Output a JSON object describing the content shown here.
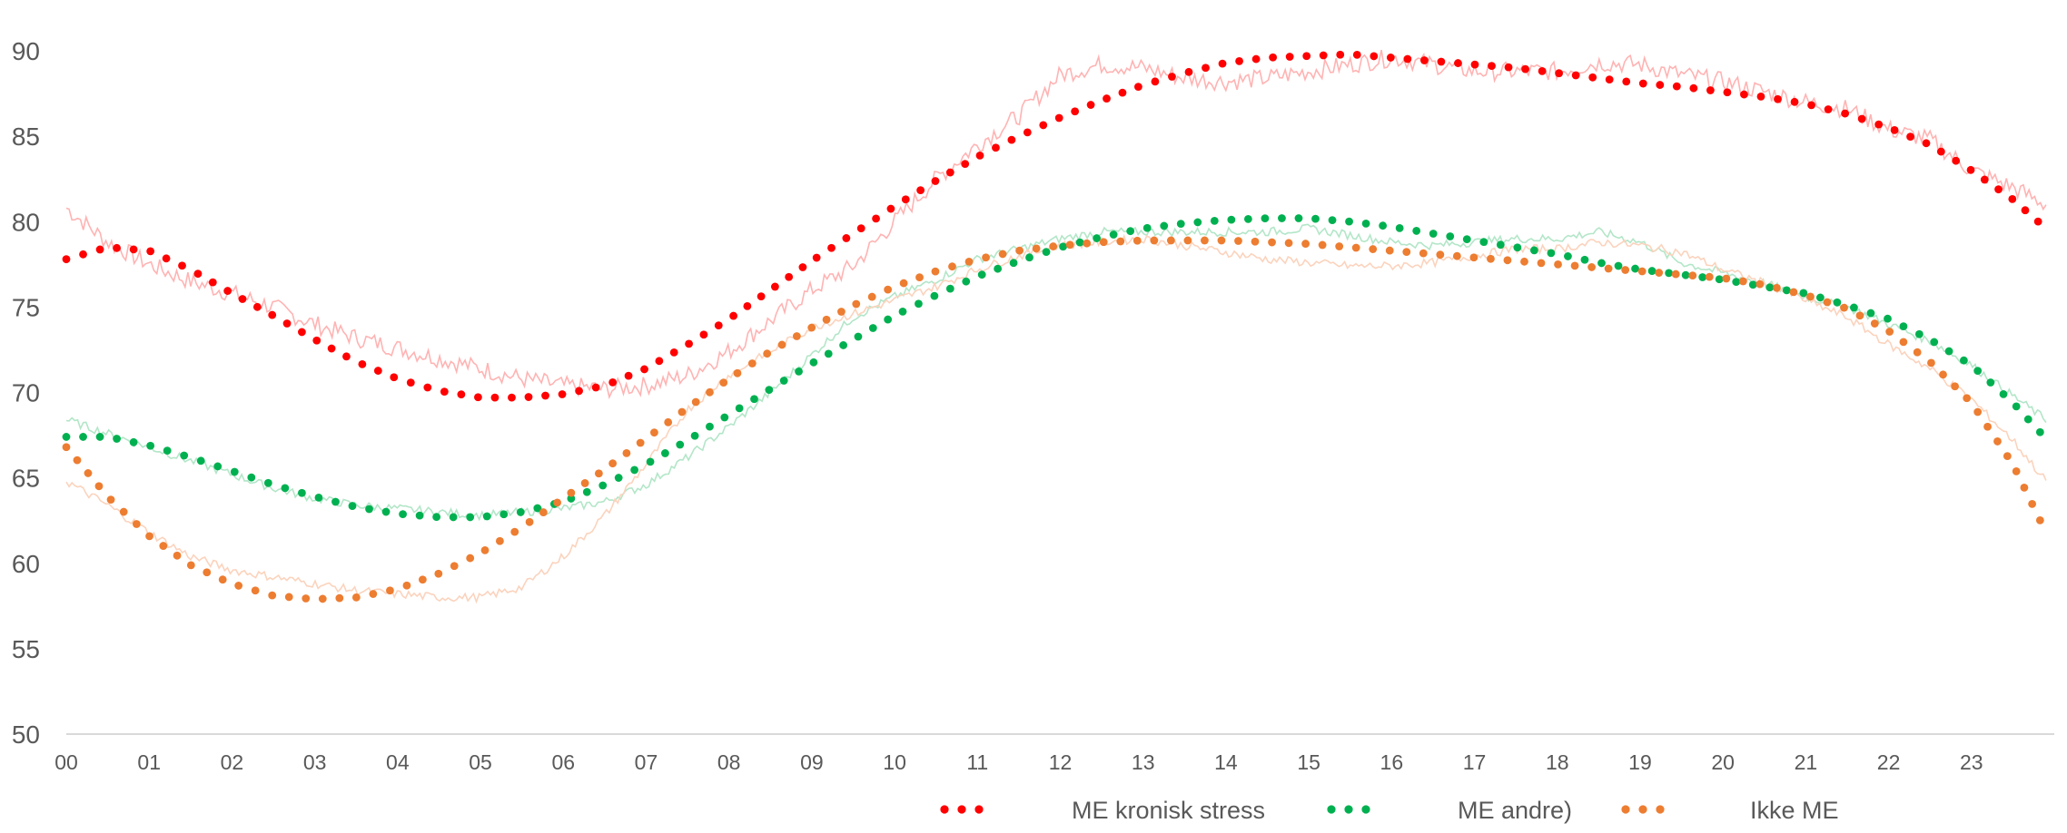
{
  "chart_data": {
    "type": "line",
    "title": "",
    "xlabel": "",
    "ylabel": "",
    "ylim": [
      50,
      90
    ],
    "yticks": [
      "50",
      "55",
      "60",
      "65",
      "70",
      "75",
      "80",
      "85",
      "90"
    ],
    "xlim": [
      0,
      24
    ],
    "xticks": [
      "00",
      "01",
      "02",
      "03",
      "04",
      "05",
      "06",
      "07",
      "08",
      "09",
      "10",
      "11",
      "12",
      "13",
      "14",
      "15",
      "16",
      "17",
      "18",
      "19",
      "20",
      "21",
      "22",
      "23"
    ],
    "grid": false,
    "legend": "bottom",
    "series": [
      {
        "name": "ME kronisk stress",
        "color": "#ff0000",
        "raw_color": "#ffb3b3",
        "trend_x": [
          0,
          0.5,
          1,
          1.5,
          2,
          2.5,
          3,
          3.5,
          4,
          4.5,
          5,
          5.5,
          6,
          6.5,
          7,
          7.5,
          8,
          8.5,
          9,
          9.5,
          10,
          10.5,
          11,
          11.5,
          12,
          12.5,
          13,
          13.5,
          14,
          14.5,
          15,
          15.5,
          16,
          16.5,
          17,
          17.5,
          18,
          18.5,
          19,
          19.5,
          20,
          20.5,
          21,
          21.5,
          22,
          22.5,
          23,
          23.5,
          23.9
        ],
        "trend_y": [
          77.8,
          78.5,
          78.3,
          77.2,
          75.8,
          74.5,
          73.1,
          71.8,
          70.8,
          70.1,
          69.7,
          69.7,
          69.9,
          70.4,
          71.4,
          72.8,
          74.3,
          76.0,
          77.7,
          79.3,
          80.9,
          82.4,
          83.8,
          85.0,
          86.1,
          87.1,
          88.0,
          88.7,
          89.3,
          89.6,
          89.7,
          89.8,
          89.6,
          89.4,
          89.2,
          89.0,
          88.7,
          88.4,
          88.1,
          87.9,
          87.6,
          87.3,
          86.9,
          86.3,
          85.5,
          84.5,
          83.0,
          81.3,
          79.6
        ],
        "raw_x": [
          0,
          0.5,
          1,
          1.5,
          2,
          2.5,
          3,
          3.5,
          4,
          4.5,
          5,
          5.5,
          6,
          6.5,
          7,
          7.5,
          8,
          8.5,
          9,
          9.5,
          10,
          10.5,
          11,
          11.5,
          12,
          12.5,
          13,
          13.5,
          14,
          14.5,
          15,
          15.5,
          16,
          16.5,
          17,
          17.5,
          18,
          18.5,
          19,
          19.5,
          20,
          20.5,
          21,
          21.5,
          22,
          22.5,
          23,
          23.5,
          23.9
        ],
        "raw_y": [
          80.8,
          78.8,
          77.5,
          76.5,
          75.8,
          75.0,
          74.0,
          73.2,
          72.6,
          72.0,
          71.4,
          70.8,
          70.4,
          70.2,
          70.4,
          71.0,
          72.4,
          74.2,
          76.0,
          77.4,
          80.0,
          82.5,
          84.5,
          86.2,
          88.6,
          89.2,
          89.0,
          88.4,
          88.2,
          88.4,
          88.8,
          89.2,
          89.6,
          89.2,
          88.8,
          88.8,
          88.8,
          89.3,
          89.2,
          88.6,
          88.2,
          87.6,
          87.0,
          86.6,
          85.4,
          84.8,
          83.0,
          82.0,
          81.0
        ]
      },
      {
        "name": "ME andre)",
        "color": "#00b050",
        "raw_color": "#b3e6c8",
        "trend_x": [
          0,
          0.5,
          1,
          1.5,
          2,
          2.5,
          3,
          3.5,
          4,
          4.5,
          5,
          5.5,
          6,
          6.5,
          7,
          7.5,
          8,
          8.5,
          9,
          9.5,
          10,
          10.5,
          11,
          11.5,
          12,
          12.5,
          13,
          13.5,
          14,
          14.5,
          15,
          15.5,
          16,
          16.5,
          17,
          17.5,
          18,
          18.5,
          19,
          19.5,
          20,
          20.5,
          21,
          21.5,
          22,
          22.5,
          23,
          23.5,
          23.9
        ],
        "trend_y": [
          67.4,
          67.4,
          66.9,
          66.2,
          65.4,
          64.6,
          63.9,
          63.3,
          62.9,
          62.7,
          62.7,
          63.0,
          63.6,
          64.6,
          65.8,
          67.2,
          68.7,
          70.2,
          71.7,
          73.1,
          74.5,
          75.7,
          76.8,
          77.7,
          78.5,
          79.1,
          79.6,
          79.9,
          80.1,
          80.2,
          80.2,
          80.0,
          79.7,
          79.3,
          78.9,
          78.5,
          78.1,
          77.6,
          77.2,
          76.9,
          76.6,
          76.2,
          75.8,
          75.1,
          74.3,
          73.1,
          71.6,
          69.4,
          67.3
        ],
        "raw_x": [
          0,
          0.5,
          1,
          1.5,
          2,
          2.5,
          3,
          3.5,
          4,
          4.5,
          5,
          5.5,
          6,
          6.5,
          7,
          7.5,
          8,
          8.5,
          9,
          9.5,
          10,
          10.5,
          11,
          11.5,
          12,
          12.5,
          13,
          13.5,
          14,
          14.5,
          15,
          15.5,
          16,
          16.5,
          17,
          17.5,
          18,
          18.5,
          19,
          19.5,
          20,
          20.5,
          21,
          21.5,
          22,
          22.5,
          23,
          23.5,
          23.9
        ],
        "raw_y": [
          68.4,
          67.6,
          66.8,
          66.0,
          65.2,
          64.4,
          63.8,
          63.4,
          63.2,
          63.0,
          62.8,
          63.0,
          63.2,
          63.6,
          64.6,
          66.2,
          68.0,
          70.0,
          72.2,
          74.4,
          75.6,
          76.6,
          77.8,
          78.4,
          79.0,
          79.4,
          79.4,
          79.4,
          79.4,
          79.4,
          79.6,
          79.2,
          78.8,
          78.6,
          78.8,
          79.0,
          79.0,
          79.4,
          78.8,
          77.6,
          77.0,
          76.4,
          75.6,
          75.0,
          74.0,
          73.0,
          71.6,
          69.8,
          68.4
        ]
      },
      {
        "name": "Ikke ME",
        "color": "#ed7d31",
        "raw_color": "#fbd3bd",
        "trend_x": [
          0,
          0.5,
          1,
          1.5,
          2,
          2.5,
          3,
          3.5,
          4,
          4.5,
          5,
          5.5,
          6,
          6.5,
          7,
          7.5,
          8,
          8.5,
          9,
          9.5,
          10,
          10.5,
          11,
          11.5,
          12,
          12.5,
          13,
          13.5,
          14,
          14.5,
          15,
          15.5,
          16,
          16.5,
          17,
          17.5,
          18,
          18.5,
          19,
          19.5,
          20,
          20.5,
          21,
          21.5,
          22,
          22.5,
          23,
          23.5,
          23.9
        ],
        "trend_y": [
          66.8,
          63.9,
          61.6,
          59.9,
          58.8,
          58.1,
          57.9,
          58.0,
          58.5,
          59.4,
          60.6,
          62.1,
          63.8,
          65.5,
          67.3,
          69.1,
          70.8,
          72.4,
          73.8,
          75.1,
          76.2,
          77.1,
          77.8,
          78.3,
          78.6,
          78.8,
          78.9,
          78.9,
          78.9,
          78.8,
          78.7,
          78.5,
          78.3,
          78.1,
          77.9,
          77.7,
          77.5,
          77.3,
          77.1,
          76.9,
          76.7,
          76.3,
          75.7,
          74.9,
          73.6,
          71.8,
          69.4,
          65.8,
          61.8
        ],
        "raw_x": [
          0,
          0.5,
          1,
          1.5,
          2,
          2.5,
          3,
          3.5,
          4,
          4.5,
          5,
          5.5,
          6,
          6.5,
          7,
          7.5,
          8,
          8.5,
          9,
          9.5,
          10,
          10.5,
          11,
          11.5,
          12,
          12.5,
          13,
          13.5,
          14,
          14.5,
          15,
          15.5,
          16,
          16.5,
          17,
          17.5,
          18,
          18.5,
          19,
          19.5,
          20,
          20.5,
          21,
          21.5,
          22,
          22.5,
          23,
          23.5,
          23.9
        ],
        "raw_y": [
          64.8,
          63.4,
          61.8,
          60.4,
          59.6,
          59.2,
          58.8,
          58.4,
          58.2,
          58.0,
          58.0,
          58.6,
          60.4,
          62.8,
          65.8,
          69.0,
          71.0,
          72.4,
          73.8,
          74.6,
          75.4,
          76.2,
          77.2,
          78.0,
          78.6,
          78.8,
          79.0,
          78.6,
          78.2,
          77.8,
          77.6,
          77.4,
          77.4,
          77.6,
          78.0,
          78.4,
          78.4,
          78.8,
          78.6,
          78.2,
          77.2,
          76.4,
          75.4,
          74.4,
          72.8,
          71.4,
          69.6,
          67.2,
          64.8
        ]
      }
    ]
  }
}
